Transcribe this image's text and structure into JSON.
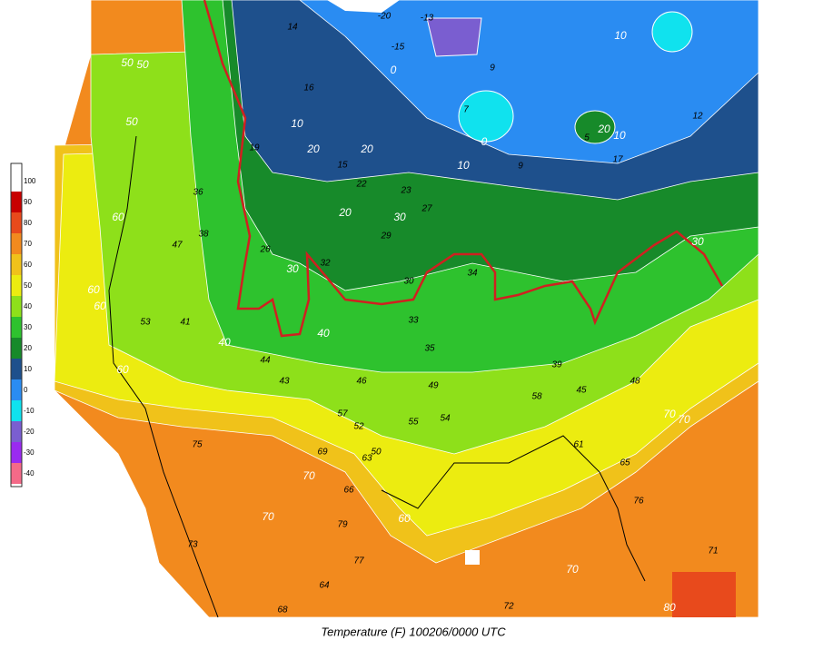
{
  "title": "Temperature (F) 100206/0000 UTC",
  "legend": [
    {
      "value": 100,
      "color": "#ffffff"
    },
    {
      "value": 90,
      "color": "#c80000"
    },
    {
      "value": 80,
      "color": "#e84a1c"
    },
    {
      "value": 70,
      "color": "#f28a1e"
    },
    {
      "value": 60,
      "color": "#f0c21a"
    },
    {
      "value": 50,
      "color": "#ecec10"
    },
    {
      "value": 40,
      "color": "#8ee01a"
    },
    {
      "value": 30,
      "color": "#2ec22e"
    },
    {
      "value": 20,
      "color": "#178a2a"
    },
    {
      "value": 10,
      "color": "#1e508c"
    },
    {
      "value": 0,
      "color": "#2a8cf2"
    },
    {
      "value": -10,
      "color": "#10e2ee"
    },
    {
      "value": -20,
      "color": "#7a5ed0"
    },
    {
      "value": -30,
      "color": "#9a2af0"
    },
    {
      "value": -40,
      "color": "#f46a88"
    }
  ],
  "contour_labels": [
    50,
    50,
    50,
    60,
    60,
    60,
    60,
    70,
    70,
    60,
    70,
    70,
    70,
    80,
    30,
    30,
    20,
    20,
    20,
    10,
    10,
    10,
    10,
    0,
    0,
    30,
    20,
    40,
    40
  ],
  "stations": [
    -20,
    -13,
    -15,
    14,
    7,
    9,
    16,
    19,
    15,
    22,
    23,
    27,
    29,
    26,
    32,
    33,
    35,
    34,
    36,
    38,
    41,
    43,
    44,
    46,
    49,
    50,
    52,
    55,
    54,
    57,
    63,
    66,
    69,
    75,
    79,
    77,
    72,
    68,
    64,
    61,
    58,
    53,
    47,
    39,
    5,
    9,
    12,
    17,
    30,
    45,
    48,
    65,
    73,
    76,
    71
  ]
}
